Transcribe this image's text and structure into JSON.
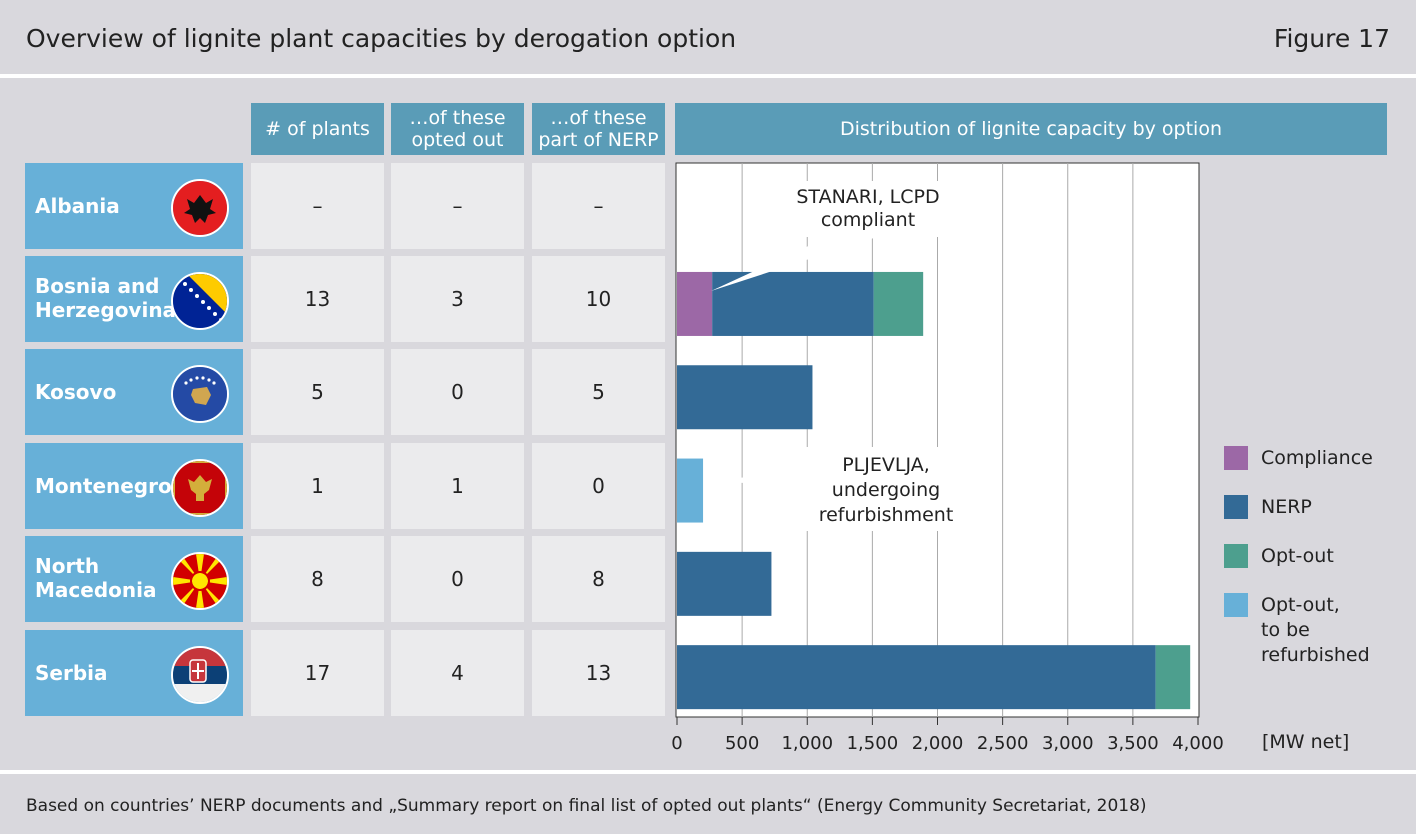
{
  "header": {
    "title": "Overview of lignite plant capacities by derogation option",
    "figure": "Figure 17"
  },
  "footer": {
    "source": "Based on countries’ NERP documents and „Summary report on final list of opted out plants“ (Energy Community Secretariat, 2018)"
  },
  "table": {
    "col_plants": "# of plants",
    "col_optout_1": "…of these",
    "col_optout_2": "opted out",
    "col_nerp_1": "…of these",
    "col_nerp_2": "part of NERP",
    "col_distribution": "Distribution of lignite capacity by option",
    "rows": [
      {
        "country_1": "Albania",
        "country_2": "",
        "plants": "–",
        "opted_out": "–",
        "nerp": "–",
        "flag": "albania-flag"
      },
      {
        "country_1": "Bosnia and",
        "country_2": "Herzegovina",
        "plants": "13",
        "opted_out": "3",
        "nerp": "10",
        "flag": "bosnia-herzegovina-flag"
      },
      {
        "country_1": "Kosovo",
        "country_2": "",
        "plants": "5",
        "opted_out": "0",
        "nerp": "5",
        "flag": "kosovo-flag"
      },
      {
        "country_1": "Montenegro",
        "country_2": "",
        "plants": "1",
        "opted_out": "1",
        "nerp": "0",
        "flag": "montenegro-flag"
      },
      {
        "country_1": "North",
        "country_2": "Macedonia",
        "plants": "8",
        "opted_out": "0",
        "nerp": "8",
        "flag": "north-macedonia-flag"
      },
      {
        "country_1": "Serbia",
        "country_2": "",
        "plants": "17",
        "opted_out": "4",
        "nerp": "13",
        "flag": "serbia-flag"
      }
    ]
  },
  "legend": {
    "compliance": "Compliance",
    "nerp": "NERP",
    "optout": "Opt-out",
    "optout_ref_1": "Opt-out,",
    "optout_ref_2": "to be",
    "optout_ref_3": "refurbished"
  },
  "colors": {
    "compliance": "#9c68a6",
    "nerp": "#336a96",
    "optout": "#4d9f8e",
    "optout_ref": "#67b0d8",
    "header_bar": "#5a9cb7",
    "country_bg": "#67b0d8"
  },
  "chart_data": {
    "type": "bar",
    "orientation": "horizontal",
    "stacked": true,
    "categories": [
      "Albania",
      "Bosnia and Herzegovina",
      "Kosovo",
      "Montenegro",
      "North Macedonia",
      "Serbia"
    ],
    "series": [
      {
        "name": "Compliance",
        "values": [
          0,
          270,
          0,
          0,
          0,
          0
        ]
      },
      {
        "name": "NERP",
        "values": [
          0,
          1240,
          1040,
          0,
          725,
          3675
        ]
      },
      {
        "name": "Opt-out",
        "values": [
          0,
          380,
          0,
          0,
          0,
          265
        ]
      },
      {
        "name": "Opt-out, to be refurbished",
        "values": [
          0,
          0,
          0,
          200,
          0,
          0
        ]
      }
    ],
    "xlim": [
      0,
      4000
    ],
    "xticks": [
      0,
      500,
      1000,
      1500,
      2000,
      2500,
      3000,
      3500,
      4000
    ],
    "xtick_labels": [
      "0",
      "500",
      "1,000",
      "1,500",
      "2,000",
      "2,500",
      "3,000",
      "3,500",
      "4,000"
    ],
    "xlabel": "[MW net]",
    "grid": true,
    "legend_position": "right",
    "annotations": [
      {
        "line1": "STANARI, LCPD",
        "line2": "compliant"
      },
      {
        "line1": "PLJEVLJA,",
        "line2": "undergoing",
        "line3": "refurbishment"
      }
    ]
  }
}
